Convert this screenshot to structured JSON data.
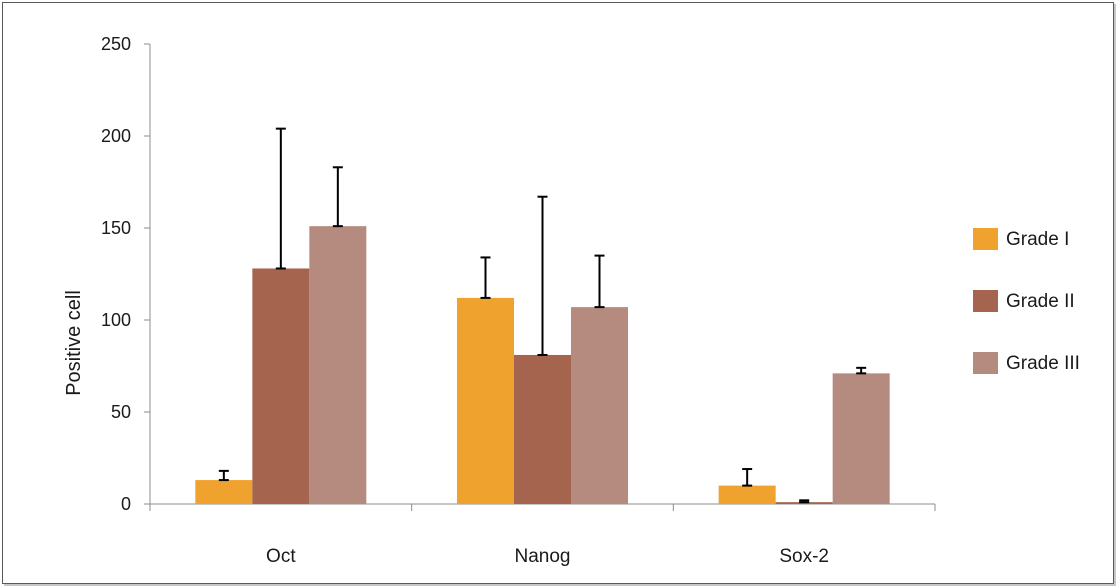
{
  "chart_data": {
    "type": "bar",
    "categories": [
      "Oct",
      "Nanog",
      "Sox-2"
    ],
    "series": [
      {
        "name": "Grade I",
        "color": "#F0A22E",
        "values": [
          13,
          112,
          10
        ],
        "errors": [
          5,
          22,
          9
        ]
      },
      {
        "name": "Grade II",
        "color": "#A5644E",
        "values": [
          128,
          81,
          1
        ],
        "errors": [
          76,
          86,
          1
        ]
      },
      {
        "name": "Grade III",
        "color": "#B58B80",
        "values": [
          151,
          107,
          71
        ],
        "errors": [
          32,
          28,
          3
        ]
      }
    ],
    "title": "",
    "xlabel": "",
    "ylabel": "Positive cell",
    "ylim": [
      0,
      250
    ],
    "yticks": [
      0,
      50,
      100,
      150,
      200,
      250
    ],
    "grid": false,
    "legend_position": "right",
    "error_bars": "upper"
  }
}
